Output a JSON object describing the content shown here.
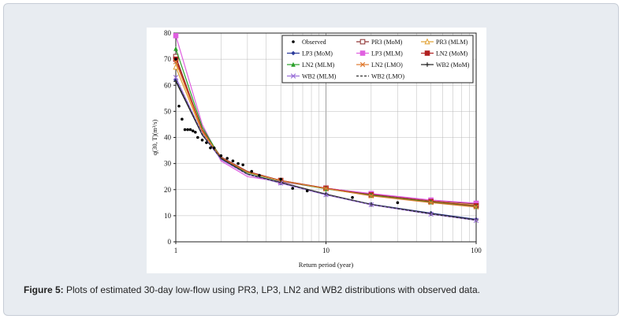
{
  "caption": {
    "label": "Figure 5:",
    "text": "Plots of estimated 30-day low-flow using PR3, LP3, LN2 and WB2 distributions with observed data."
  },
  "chart_data": {
    "type": "line",
    "xscale": "log",
    "xlim": [
      1,
      100
    ],
    "ylim": [
      0,
      80
    ],
    "xlabel": "Return period (year)",
    "ylabel": "q(30, T)(m³/s)",
    "xticks": [
      "1",
      "10",
      "100"
    ],
    "yticks": [
      0,
      10,
      20,
      30,
      40,
      50,
      60,
      70,
      80
    ],
    "observed": {
      "name": "Observed",
      "x": [
        1.0,
        1.05,
        1.1,
        1.15,
        1.2,
        1.25,
        1.3,
        1.35,
        1.4,
        1.5,
        1.6,
        1.7,
        1.8,
        2.0,
        2.2,
        2.4,
        2.6,
        2.8,
        3.2,
        3.6,
        5.0,
        6.0,
        7.5,
        15.0,
        30.0
      ],
      "y": [
        70,
        52,
        47,
        43,
        43,
        43,
        42.5,
        42,
        40,
        39,
        38,
        36,
        36,
        33,
        32,
        31,
        30,
        29.5,
        27,
        25.5,
        24,
        20.5,
        19.5,
        17,
        15
      ]
    },
    "series": [
      {
        "name": "PR3 (MoM)",
        "color": "#8b2e2e",
        "marker": "square-open",
        "x": [
          1,
          1.5,
          2,
          3,
          5,
          10,
          20,
          50,
          100
        ],
        "y": [
          71,
          43,
          32.5,
          27,
          23.5,
          20.6,
          18.3,
          15.8,
          14.5
        ]
      },
      {
        "name": "PR3 (MLM)",
        "color": "#e0a030",
        "marker": "triangle-open",
        "x": [
          1,
          1.5,
          2,
          3,
          5,
          10,
          20,
          50,
          100
        ],
        "y": [
          67,
          42,
          32,
          26.8,
          23.3,
          20.4,
          17.8,
          15.5,
          14.0
        ]
      },
      {
        "name": "LP3 (MoM)",
        "color": "#2b3a9a",
        "marker": "diamond",
        "x": [
          1,
          1.5,
          2,
          3,
          5,
          10,
          20,
          50,
          100
        ],
        "y": [
          62,
          41,
          31.8,
          25.8,
          22.5,
          18.2,
          14.4,
          11,
          8.6
        ]
      },
      {
        "name": "LP3 (MLM)",
        "color": "#e060e0",
        "marker": "square",
        "x": [
          1,
          1.5,
          2,
          3,
          5,
          10,
          20,
          50,
          100
        ],
        "y": [
          79,
          45,
          31,
          25,
          23,
          20.5,
          18.5,
          16,
          14.8
        ]
      },
      {
        "name": "LN2 (MoM)",
        "color": "#b02020",
        "marker": "square",
        "x": [
          1,
          1.5,
          2,
          3,
          5,
          10,
          20,
          50,
          100
        ],
        "y": [
          70,
          43,
          32.3,
          26.8,
          23.5,
          20.5,
          18,
          15.4,
          13.8
        ]
      },
      {
        "name": "LN2 (MLM)",
        "color": "#2aa02a",
        "marker": "triangle",
        "x": [
          1,
          1.5,
          2,
          3,
          5,
          10,
          20,
          50,
          100
        ],
        "y": [
          74,
          44,
          32,
          26.5,
          23.3,
          20.3,
          17.8,
          15.2,
          13.5
        ]
      },
      {
        "name": "LN2 (LMO)",
        "color": "#e07a30",
        "marker": "x",
        "x": [
          1,
          1.5,
          2,
          3,
          5,
          10,
          20,
          50,
          100
        ],
        "y": [
          69,
          42.5,
          32.2,
          26.7,
          23.4,
          20.4,
          17.6,
          15,
          13.3
        ]
      },
      {
        "name": "WB2 (MoM)",
        "color": "#222222",
        "marker": "plus",
        "x": [
          1,
          1.5,
          2,
          3,
          5,
          10,
          20,
          50,
          100
        ],
        "y": [
          61.5,
          41,
          32,
          26,
          22.8,
          18.3,
          14.3,
          10.8,
          8.4
        ]
      },
      {
        "name": "WB2 (MLM)",
        "color": "#9a70d8",
        "marker": "x",
        "x": [
          1,
          1.5,
          2,
          3,
          5,
          10,
          20,
          50,
          100
        ],
        "y": [
          63,
          41.5,
          31.5,
          25.8,
          22.5,
          18,
          14.2,
          10.6,
          8.2
        ]
      },
      {
        "name": "WB2 (LMO)",
        "color": "#333333",
        "marker": "none",
        "dashed": true,
        "x": [
          1,
          1.5,
          2,
          3,
          5,
          10,
          20,
          50,
          100
        ],
        "y": [
          62,
          41.2,
          31.9,
          25.9,
          22.7,
          18.2,
          14.3,
          10.7,
          8.3
        ]
      }
    ]
  }
}
